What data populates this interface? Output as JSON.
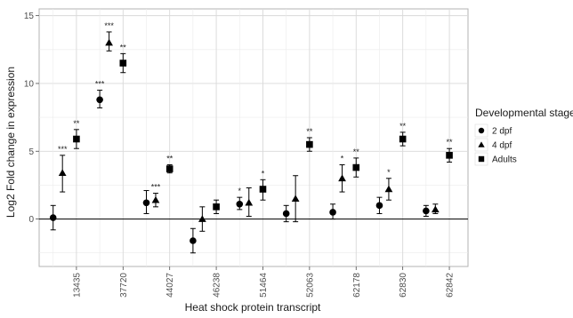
{
  "chart_data": {
    "type": "scatter",
    "xlabel": "Heat shock protein transcript",
    "ylabel": "Log2 Fold change in expression",
    "categories": [
      "13435",
      "37720",
      "44027",
      "46238",
      "51464",
      "52063",
      "62178",
      "62830",
      "62842"
    ],
    "ylim": [
      -3.5,
      15.5
    ],
    "yticks": [
      0,
      5,
      10,
      15
    ],
    "grid": true,
    "zero_line": true,
    "legend": {
      "title": "Developmental stage",
      "position": "right"
    },
    "series": [
      {
        "name": "2 dpf",
        "marker": "circle",
        "positions": [
          0.5,
          1.5,
          2.5,
          3.5,
          4.5,
          5.5,
          6.5,
          7.5,
          8.5
        ],
        "values": [
          0.1,
          8.8,
          1.2,
          -1.6,
          1.1,
          0.4,
          0.5,
          1.0,
          0.6
        ],
        "err_low": [
          -0.8,
          8.2,
          0.4,
          -2.5,
          0.7,
          -0.2,
          0.0,
          0.4,
          0.2
        ],
        "err_high": [
          1.0,
          9.5,
          2.1,
          -0.7,
          1.6,
          1.0,
          1.1,
          1.6,
          1.0
        ],
        "sig": [
          "",
          "***",
          "",
          "",
          "*",
          "",
          "",
          "",
          ""
        ]
      },
      {
        "name": "4 dpf",
        "marker": "triangle",
        "positions": [
          0.7,
          1.7,
          2.7,
          3.7,
          4.7,
          5.7,
          6.7,
          7.7,
          8.7
        ],
        "values": [
          3.4,
          13.0,
          1.4,
          0.0,
          1.2,
          1.5,
          3.0,
          2.2,
          0.7
        ],
        "err_low": [
          2.0,
          12.4,
          0.9,
          -0.9,
          0.2,
          -0.2,
          2.0,
          1.4,
          0.4
        ],
        "err_high": [
          4.7,
          13.8,
          1.9,
          0.9,
          2.3,
          3.2,
          4.0,
          3.0,
          1.1
        ],
        "sig": [
          "***",
          "***",
          "***",
          "",
          "",
          "",
          "*",
          "*",
          ""
        ]
      },
      {
        "name": "Adults",
        "marker": "square",
        "positions": [
          1.0,
          2.0,
          3.0,
          4.0,
          5.0,
          6.0,
          7.0,
          8.0,
          9.0
        ],
        "values": [
          5.9,
          11.5,
          3.7,
          0.9,
          2.2,
          5.5,
          3.8,
          5.9,
          4.7
        ],
        "err_low": [
          5.2,
          10.8,
          3.4,
          0.4,
          1.4,
          5.0,
          3.1,
          5.4,
          4.2
        ],
        "err_high": [
          6.6,
          12.2,
          4.0,
          1.4,
          2.9,
          6.0,
          4.5,
          6.4,
          5.2
        ],
        "sig": [
          "**",
          "**",
          "**",
          "",
          "*",
          "**",
          "**",
          "**",
          "**"
        ]
      }
    ]
  }
}
